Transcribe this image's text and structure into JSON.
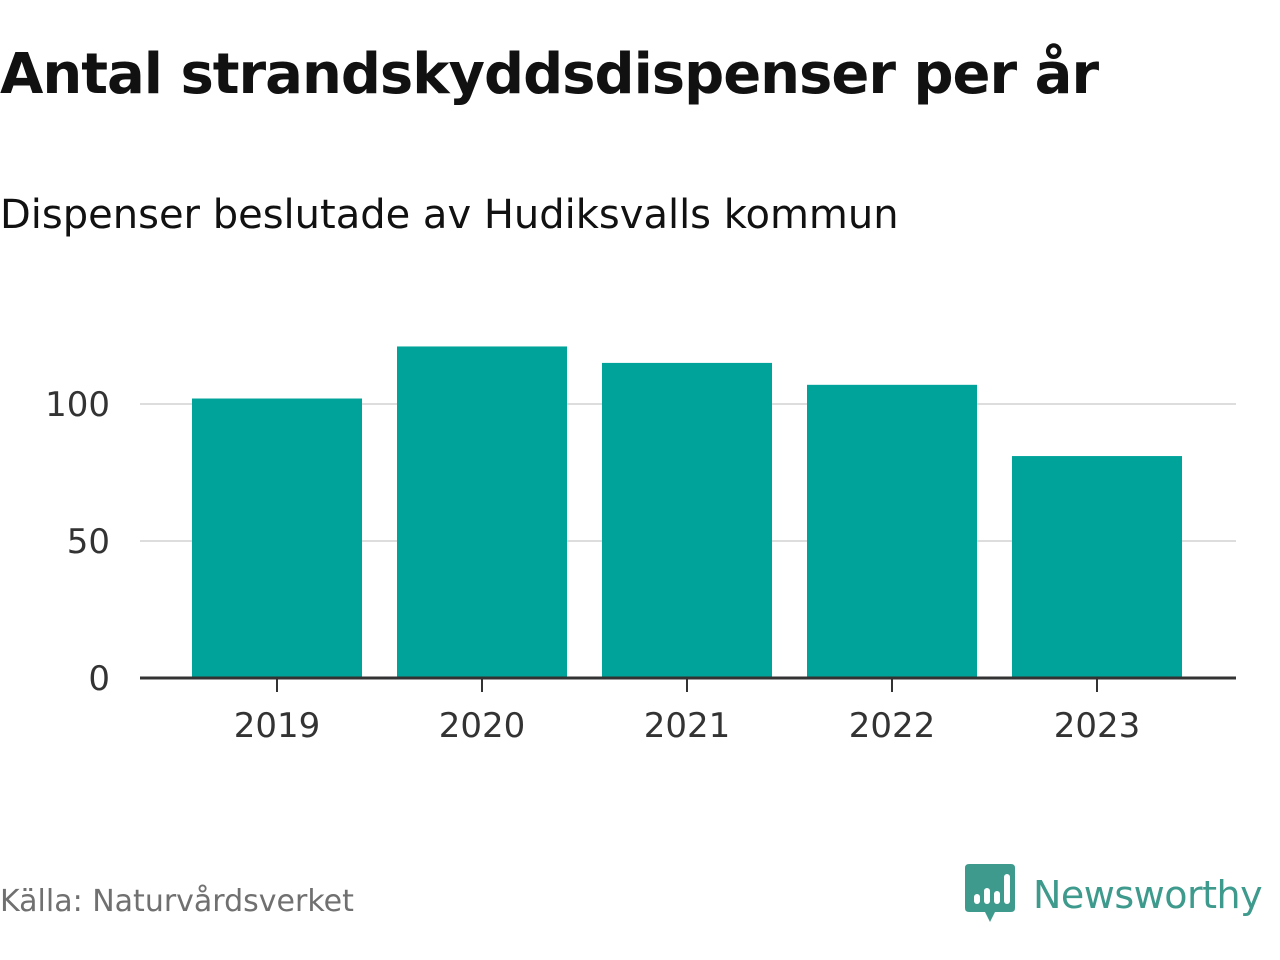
{
  "title": "Antal strandskyddsdispenser per år",
  "subtitle": "Dispenser beslutade av Hudiksvalls kommun",
  "source": "Källa: Naturvårdsverket",
  "brand": {
    "name": "Newsworthy",
    "icon": "newsworthy-logo-icon",
    "color": "#3e9a8c"
  },
  "colors": {
    "bar": "#00a39a",
    "grid": "#dddddd",
    "axis": "#333333"
  },
  "chart_data": {
    "type": "bar",
    "categories": [
      "2019",
      "2020",
      "2021",
      "2022",
      "2023"
    ],
    "values": [
      102,
      121,
      115,
      107,
      81
    ],
    "title": "Antal strandskyddsdispenser per år",
    "subtitle": "Dispenser beslutade av Hudiksvalls kommun",
    "xlabel": "",
    "ylabel": "",
    "ylim": [
      0,
      130
    ],
    "yticks": [
      0,
      50,
      100
    ],
    "grid": true,
    "legend": "none"
  }
}
